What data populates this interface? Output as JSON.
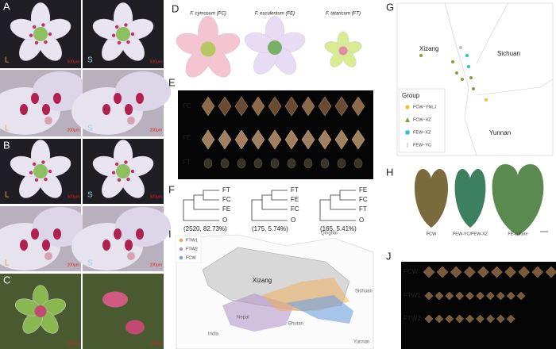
{
  "panels": {
    "A": {
      "label": "A",
      "images": [
        {
          "tag": "L",
          "scale": "500μm"
        },
        {
          "tag": "S",
          "scale": "500μm"
        },
        {
          "tag": "L",
          "scale": "200μm"
        },
        {
          "tag": "S",
          "scale": "200μm"
        }
      ]
    },
    "B": {
      "label": "B",
      "images": [
        {
          "tag": "L",
          "scale": "500μm"
        },
        {
          "tag": "S",
          "scale": "500μm"
        },
        {
          "tag": "L",
          "scale": "200μm"
        },
        {
          "tag": "S",
          "scale": "200μm"
        }
      ]
    },
    "C": {
      "label": "C",
      "images": [
        {
          "scale": "200μm"
        },
        {
          "scale": "100μm"
        }
      ]
    },
    "D": {
      "label": "D",
      "species": [
        "F. cymosum (FC)",
        "F. esculentum (FE)",
        "F. tataricum (FT)"
      ]
    },
    "E": {
      "label": "E",
      "rows": [
        "FC",
        "FE",
        "FT"
      ]
    },
    "F": {
      "label": "F",
      "trees": [
        {
          "tips": [
            "FT",
            "FC",
            "FE",
            "O"
          ],
          "support": "(2520, 82.73%)"
        },
        {
          "tips": [
            "FT",
            "FE",
            "FC",
            "O"
          ],
          "support": "(175, 5.74%)"
        },
        {
          "tips": [
            "FE",
            "FC",
            "FT",
            "O"
          ],
          "support": "(165, 5.41%)"
        }
      ]
    },
    "G": {
      "label": "G",
      "places": [
        "Xizang",
        "Sichuan",
        "Yunnan"
      ],
      "legend_title": "Group",
      "groups": [
        "FCW−YNLJ",
        "FCW−XZ",
        "FEW−XZ",
        "FEW−YC"
      ]
    },
    "H": {
      "label": "H",
      "leaves": [
        "FCW",
        "FEW-YC/FEW-XZ",
        "FE-culture"
      ]
    },
    "I": {
      "label": "I",
      "legend": [
        "FTW1",
        "FTW2",
        "FCW"
      ],
      "places": [
        "Qinghai",
        "Xizang",
        "Sichuan",
        "Nepal",
        "Bhutan",
        "India",
        "Yunnan"
      ]
    },
    "J": {
      "label": "J",
      "rows": [
        "FCW",
        "FTW1",
        "FTW2"
      ]
    }
  }
}
